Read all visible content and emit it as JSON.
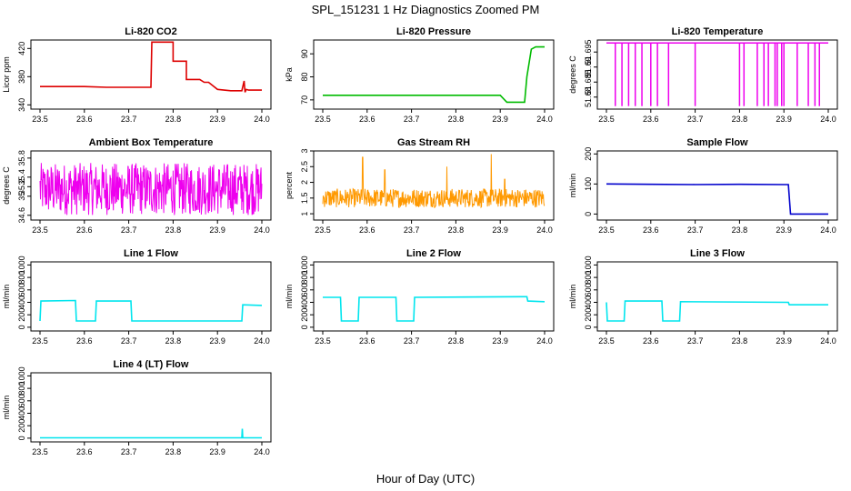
{
  "figure": {
    "title": "SPL_151231  1 Hz Diagnostics Zoomed PM",
    "xlabel": "Hour of Day (UTC)"
  },
  "chart_data": [
    {
      "type": "line",
      "title": "Li-820 CO2",
      "ylabel": "Licor ppm",
      "color": "#dd0000",
      "xlim": [
        23.5,
        24.0
      ],
      "xticks": [
        "23.5",
        "23.6",
        "23.7",
        "23.8",
        "23.9",
        "24.0"
      ],
      "ylim": [
        334,
        432
      ],
      "yticks": [
        340,
        380,
        420
      ],
      "series": [
        {
          "x": [
            23.5,
            23.55,
            23.6,
            23.65,
            23.7,
            23.75,
            23.752,
            23.8,
            23.8,
            23.83,
            23.83,
            23.86,
            23.87,
            23.88,
            23.9,
            23.93,
            23.955,
            23.96,
            23.962,
            23.965,
            23.97,
            24.0
          ],
          "y": [
            366,
            366,
            366,
            365,
            365,
            365,
            429,
            429,
            402,
            402,
            376,
            376,
            372,
            372,
            362,
            360,
            360,
            374,
            358,
            362,
            361,
            361
          ]
        }
      ]
    },
    {
      "type": "line",
      "title": "Li-820 Pressure",
      "ylabel": "kPa",
      "color": "#00bb00",
      "xlim": [
        23.5,
        24.0
      ],
      "xticks": [
        "23.5",
        "23.6",
        "23.7",
        "23.8",
        "23.9",
        "24.0"
      ],
      "ylim": [
        66,
        96
      ],
      "yticks": [
        70,
        80,
        90
      ],
      "series": [
        {
          "x": [
            23.5,
            23.6,
            23.7,
            23.8,
            23.9,
            23.915,
            23.955,
            23.96,
            23.97,
            23.98,
            24.0
          ],
          "y": [
            72,
            72,
            72,
            72,
            72,
            69,
            69,
            80,
            92,
            93,
            93
          ]
        }
      ]
    },
    {
      "type": "line",
      "title": "Li-820 Temperature",
      "ylabel": "degrees C",
      "color": "#ee00ee",
      "xlim": [
        23.5,
        24.0
      ],
      "xticks": [
        "23.5",
        "23.6",
        "23.7",
        "23.8",
        "23.9",
        "24.0"
      ],
      "ylim": [
        51.676,
        51.699
      ],
      "yticks": [
        51.68,
        51.685,
        51.69,
        51.695
      ],
      "series": [
        {
          "baseline": 51.698,
          "dip_value": 51.677,
          "dip_x": [
            23.52,
            23.535,
            23.55,
            23.565,
            23.58,
            23.6,
            23.615,
            23.64,
            23.7,
            23.8,
            23.81,
            23.84,
            23.855,
            23.865,
            23.88,
            23.885,
            23.895,
            23.9,
            23.93,
            23.955,
            23.97,
            23.98
          ]
        }
      ]
    },
    {
      "type": "line",
      "title": "Ambient Box Temperature",
      "ylabel": "degrees C",
      "color": "#ee00ee",
      "xlim": [
        23.5,
        24.0
      ],
      "xticks": [
        "23.5",
        "23.6",
        "23.7",
        "23.8",
        "23.9",
        "24.0"
      ],
      "ylim": [
        34.5,
        35.95
      ],
      "yticks": [
        34.6,
        35.0,
        35.2,
        35.4,
        35.8
      ],
      "series": [
        {
          "mean": 35.15,
          "spread": 0.55,
          "noise": "dense"
        }
      ]
    },
    {
      "type": "line",
      "title": "Gas Stream RH",
      "ylabel": "percent",
      "color": "#ff9900",
      "xlim": [
        23.5,
        24.0
      ],
      "xticks": [
        "23.5",
        "23.6",
        "23.7",
        "23.8",
        "23.9",
        "24.0"
      ],
      "ylim": [
        0.8,
        3.0
      ],
      "yticks": [
        1.0,
        1.5,
        2.0,
        2.5,
        3.0
      ],
      "series": [
        {
          "mean": 1.5,
          "spread": 0.3,
          "noise": "dense",
          "spikes": [
            [
              23.59,
              2.8
            ],
            [
              23.64,
              2.4
            ],
            [
              23.78,
              2.5
            ],
            [
              23.88,
              2.9
            ],
            [
              23.91,
              2.1
            ]
          ]
        }
      ]
    },
    {
      "type": "line",
      "title": "Sample Flow",
      "ylabel": "ml/min",
      "color": "#0000cc",
      "xlim": [
        23.5,
        24.0
      ],
      "xticks": [
        "23.5",
        "23.6",
        "23.7",
        "23.8",
        "23.9",
        "24.0"
      ],
      "ylim": [
        -20,
        210
      ],
      "yticks": [
        0,
        100,
        200
      ],
      "series": [
        {
          "x": [
            23.5,
            23.6,
            23.7,
            23.8,
            23.9,
            23.91,
            23.915,
            23.92,
            24.0
          ],
          "y": [
            100,
            99,
            98,
            99,
            98,
            98,
            0,
            0,
            0
          ]
        }
      ]
    },
    {
      "type": "line",
      "title": "Line 1 Flow",
      "ylabel": "ml/min",
      "color": "#00e5ee",
      "xlim": [
        23.5,
        24.0
      ],
      "xticks": [
        "23.5",
        "23.6",
        "23.7",
        "23.8",
        "23.9",
        "24.0"
      ],
      "ylim": [
        -60,
        1050
      ],
      "yticks": [
        0,
        200,
        400,
        600,
        800,
        1000
      ],
      "series": [
        {
          "x": [
            23.5,
            23.502,
            23.58,
            23.582,
            23.625,
            23.627,
            23.705,
            23.707,
            23.955,
            23.957,
            24.0
          ],
          "y": [
            100,
            420,
            430,
            100,
            100,
            420,
            420,
            100,
            100,
            360,
            350
          ]
        }
      ]
    },
    {
      "type": "line",
      "title": "Line 2 Flow",
      "ylabel": "ml/min",
      "color": "#00e5ee",
      "xlim": [
        23.5,
        24.0
      ],
      "xticks": [
        "23.5",
        "23.6",
        "23.7",
        "23.8",
        "23.9",
        "24.0"
      ],
      "ylim": [
        -60,
        1050
      ],
      "yticks": [
        0,
        200,
        400,
        600,
        800,
        1000
      ],
      "series": [
        {
          "x": [
            23.5,
            23.54,
            23.542,
            23.58,
            23.582,
            23.665,
            23.667,
            23.705,
            23.707,
            23.95,
            23.96,
            23.962,
            24.0
          ],
          "y": [
            480,
            480,
            100,
            100,
            480,
            480,
            100,
            100,
            480,
            490,
            490,
            420,
            410
          ]
        }
      ]
    },
    {
      "type": "line",
      "title": "Line 3 Flow",
      "ylabel": "ml/min",
      "color": "#00e5ee",
      "xlim": [
        23.5,
        24.0
      ],
      "xticks": [
        "23.5",
        "23.6",
        "23.7",
        "23.8",
        "23.9",
        "24.0"
      ],
      "ylim": [
        -60,
        1050
      ],
      "yticks": [
        0,
        200,
        400,
        600,
        800,
        1000
      ],
      "series": [
        {
          "x": [
            23.5,
            23.502,
            23.54,
            23.542,
            23.625,
            23.627,
            23.665,
            23.667,
            23.91,
            23.912,
            24.0
          ],
          "y": [
            400,
            100,
            100,
            420,
            420,
            100,
            100,
            410,
            400,
            360,
            360
          ]
        }
      ]
    },
    {
      "type": "line",
      "title": "Line 4 (LT) Flow",
      "ylabel": "ml/min",
      "color": "#00e5ee",
      "xlim": [
        23.5,
        24.0
      ],
      "xticks": [
        "23.5",
        "23.6",
        "23.7",
        "23.8",
        "23.9",
        "24.0"
      ],
      "ylim": [
        -60,
        1050
      ],
      "yticks": [
        0,
        200,
        400,
        600,
        800,
        1000
      ],
      "series": [
        {
          "x": [
            23.5,
            23.955,
            23.956,
            23.957,
            24.0
          ],
          "y": [
            5,
            5,
            150,
            5,
            5
          ]
        }
      ]
    }
  ]
}
